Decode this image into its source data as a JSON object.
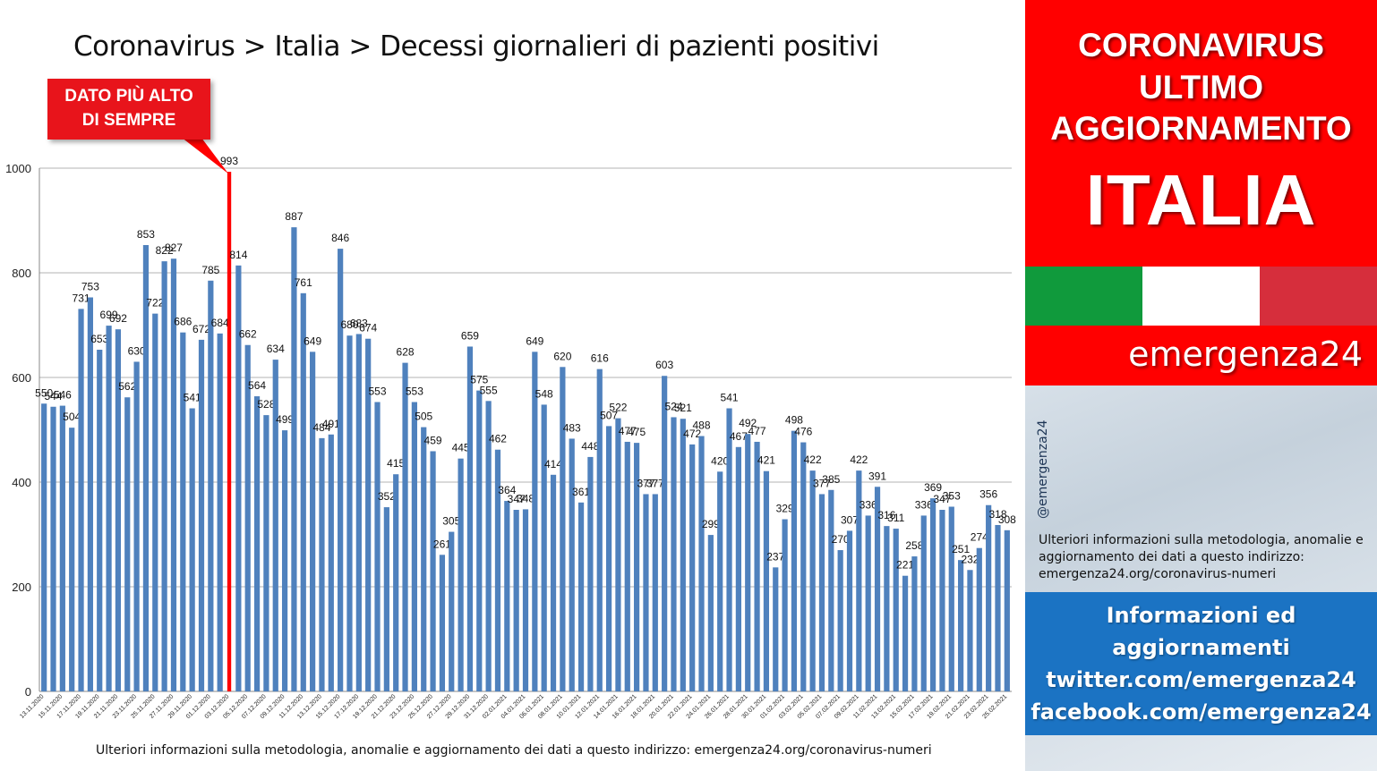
{
  "title": "Coronavirus > Italia > Decessi giornalieri di pazienti positivi",
  "callout": {
    "line1": "DATO PIÙ ALTO",
    "line2": "DI SEMPRE",
    "index": 20
  },
  "footnote": "Ulteriori informazioni sulla metodologia, anomalie e aggiornamento dei dati a questo indirizzo: emergenza24.org/coronavirus-numeri",
  "side": {
    "header": [
      "CORONAVIRUS",
      "ULTIMO",
      "AGGIORNAMENTO",
      "ITALIA"
    ],
    "brand": "emergenza24",
    "handle": "@emergenza24",
    "note": "Ulteriori informazioni sulla metodologia, anomalie e aggiornamento dei dati a questo indirizzo: emergenza24.org/coronavirus-numeri",
    "info": [
      "Informazioni ed",
      "aggiornamenti",
      "twitter.com/emergenza24",
      "facebook.com/emergenza24"
    ]
  },
  "colors": {
    "bar": "#4f81bd",
    "highlight": "#ff0000",
    "grid": "#b3b3b3"
  },
  "chart_data": {
    "type": "bar",
    "title": "Coronavirus > Italia > Decessi giornalieri di pazienti positivi",
    "ylim": [
      0,
      1000
    ],
    "yticks": [
      0,
      200,
      400,
      600,
      800,
      1000
    ],
    "grid": true,
    "x_tick_labels": [
      "13.11.2020",
      "15.11.2020",
      "17.11.2020",
      "19.11.2020",
      "21.11.2020",
      "23.11.2020",
      "25.11.2020",
      "27.11.2020",
      "29.11.2020",
      "01.12.2020",
      "03.12.2020",
      "05.12.2020",
      "07.12.2020",
      "09.12.2020",
      "11.12.2020",
      "13.12.2020",
      "15.12.2020",
      "17.12.2020",
      "19.12.2020",
      "21.12.2020",
      "23.12.2020",
      "25.12.2020",
      "27.12.2020",
      "29.12.2020",
      "31.12.2020",
      "02.01.2021",
      "04.01.2021",
      "06.01.2021",
      "08.01.2021",
      "10.01.2021",
      "12.01.2021",
      "14.01.2021",
      "16.01.2021",
      "18.01.2021",
      "20.01.2021",
      "22.01.2021",
      "24.01.2021",
      "26.01.2021",
      "28.01.2021",
      "30.01.2021",
      "01.02.2021",
      "03.02.2021",
      "05.02.2021",
      "07.02.2021",
      "09.02.2021",
      "11.02.2021",
      "13.02.2021",
      "15.02.2021",
      "17.02.2021",
      "19.02.2021",
      "21.02.2021",
      "23.02.2021",
      "25.02.2021"
    ],
    "values": [
      550,
      544,
      546,
      504,
      731,
      753,
      653,
      699,
      692,
      562,
      630,
      853,
      722,
      822,
      827,
      686,
      541,
      672,
      785,
      684,
      993,
      814,
      662,
      564,
      528,
      634,
      499,
      887,
      761,
      649,
      484,
      491,
      846,
      680,
      683,
      674,
      553,
      352,
      415,
      628,
      553,
      505,
      459,
      261,
      305,
      445,
      659,
      575,
      555,
      462,
      364,
      347,
      348,
      649,
      548,
      414,
      620,
      483,
      361,
      448,
      616,
      507,
      522,
      477,
      475,
      377,
      377,
      603,
      524,
      521,
      472,
      488,
      299,
      420,
      541,
      467,
      492,
      477,
      421,
      237,
      329,
      498,
      476,
      422,
      377,
      385,
      270,
      307,
      422,
      336,
      391,
      316,
      311,
      221,
      258,
      336,
      369,
      347,
      353,
      251,
      232,
      274,
      356,
      318,
      308
    ]
  }
}
